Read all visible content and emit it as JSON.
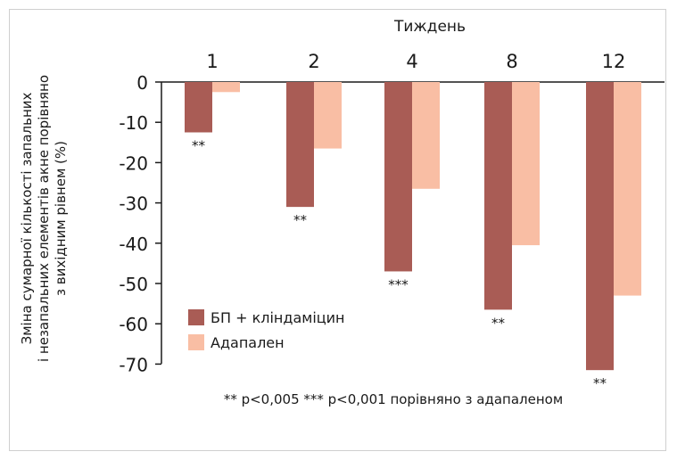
{
  "chart_data": {
    "type": "bar",
    "x_title": "Тиждень",
    "ylabel_lines": [
      "Зміна сумарної кількості запальних",
      "і незапальних елементів акне порівняно",
      "з вихідним рівнем (%)"
    ],
    "categories": [
      "1",
      "2",
      "4",
      "8",
      "12"
    ],
    "ylim": [
      -70,
      0
    ],
    "yticks": [
      0,
      -10,
      -20,
      -30,
      -40,
      -50,
      -60,
      -70
    ],
    "series": [
      {
        "name": "БП + кліндаміцин",
        "color": "#a95c55",
        "values": [
          -12.5,
          -31,
          -47,
          -56.5,
          -71.5
        ]
      },
      {
        "name": "Адапален",
        "color": "#f9bea4",
        "values": [
          -2.5,
          -16.5,
          -26.5,
          -40.5,
          -53
        ]
      }
    ],
    "significance": [
      "**",
      "**",
      "***",
      "**",
      "**"
    ],
    "footnote": "** p<0,005 *** p<0,001 порівняно з адапаленом",
    "legend_position": "bottom-left",
    "grid": false
  }
}
